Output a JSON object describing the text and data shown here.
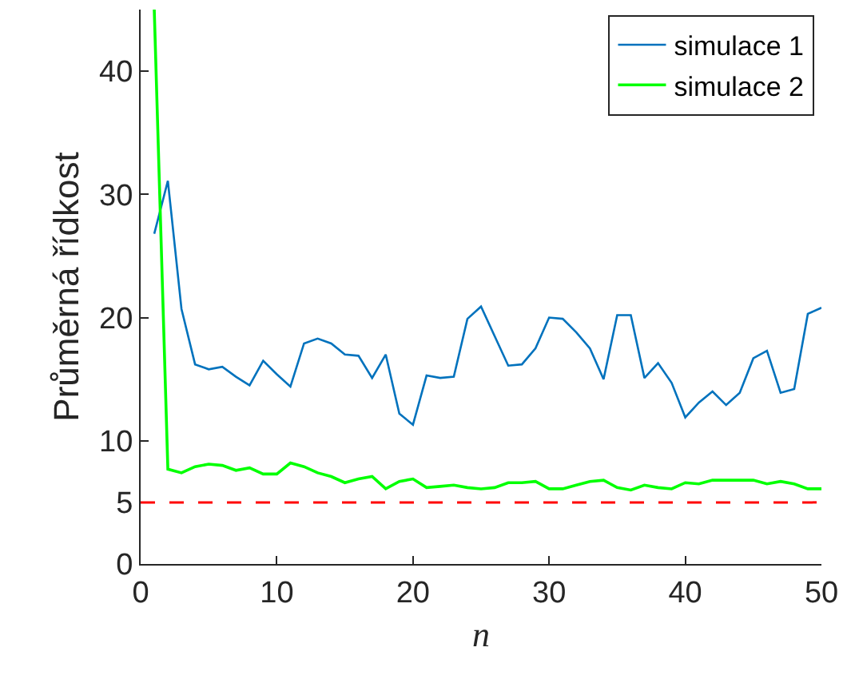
{
  "chart_data": {
    "type": "line",
    "xlabel": "n",
    "ylabel": "Průměrná řídkost",
    "x": [
      1,
      2,
      3,
      4,
      5,
      6,
      7,
      8,
      9,
      10,
      11,
      12,
      13,
      14,
      15,
      16,
      17,
      18,
      19,
      20,
      21,
      22,
      23,
      24,
      25,
      26,
      27,
      28,
      29,
      30,
      31,
      32,
      33,
      34,
      35,
      36,
      37,
      38,
      39,
      40,
      41,
      42,
      43,
      44,
      45,
      46,
      47,
      48,
      49,
      50
    ],
    "series": [
      {
        "name": "simulace 1",
        "color": "#0072bd",
        "values": [
          26.8,
          31.1,
          20.7,
          16.2,
          15.8,
          16.0,
          15.2,
          14.5,
          16.5,
          15.4,
          14.4,
          17.9,
          18.3,
          17.9,
          17.0,
          16.9,
          15.1,
          17.0,
          12.2,
          11.3,
          15.3,
          15.1,
          15.2,
          19.9,
          20.9,
          18.5,
          16.1,
          16.2,
          17.5,
          20.0,
          19.9,
          18.8,
          17.5,
          15.0,
          20.2,
          20.2,
          15.1,
          16.3,
          14.7,
          11.9,
          13.1,
          14.0,
          12.9,
          13.9,
          16.7,
          17.3,
          13.9,
          14.2,
          20.3,
          20.8
        ]
      },
      {
        "name": "simulace 2",
        "color": "#00ff00",
        "values": [
          45,
          7.7,
          7.4,
          7.9,
          8.1,
          8.0,
          7.6,
          7.8,
          7.3,
          7.3,
          8.2,
          7.9,
          7.4,
          7.1,
          6.6,
          6.9,
          7.1,
          6.1,
          6.7,
          6.9,
          6.2,
          6.3,
          6.4,
          6.2,
          6.1,
          6.2,
          6.6,
          6.6,
          6.7,
          6.1,
          6.1,
          6.4,
          6.7,
          6.8,
          6.2,
          6.0,
          6.4,
          6.2,
          6.1,
          6.6,
          6.5,
          6.8,
          6.8,
          6.8,
          6.8,
          6.5,
          6.7,
          6.5,
          6.1,
          6.1
        ]
      }
    ],
    "ref_lines": [
      {
        "axis": "y",
        "value": 5,
        "color": "#ff0000",
        "line_style": "dashed"
      }
    ],
    "xlim": [
      0,
      50
    ],
    "xticks": [
      0,
      10,
      20,
      30,
      40,
      50
    ],
    "ylim": [
      0,
      45
    ],
    "yticks": [
      0,
      5,
      10,
      20,
      30,
      40
    ],
    "legend": "top right",
    "line_style": "solid",
    "marker": "none"
  }
}
